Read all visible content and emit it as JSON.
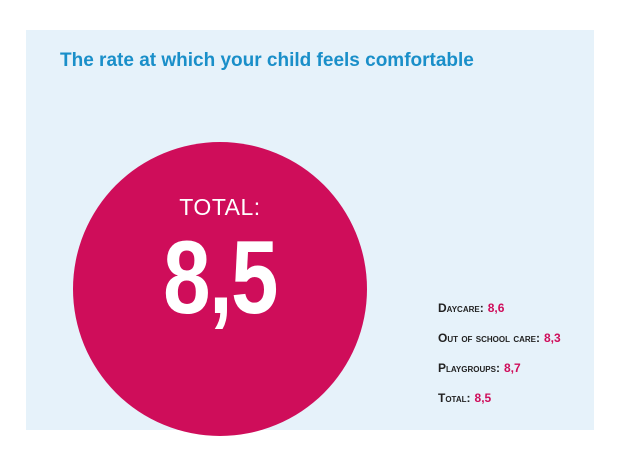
{
  "chart_data": {
    "type": "table",
    "title": "The rate at which your child feels comfortable",
    "highlight": {
      "label": "TOTAL:",
      "value_text": "8,5",
      "value": 8.5
    },
    "categories": [
      "Daycare:",
      "Out of school care:",
      "Playgroups:",
      "Total:"
    ],
    "value_texts": [
      "8,6",
      "8,3",
      "8,7",
      "8,5"
    ],
    "values": [
      8.6,
      8.3,
      8.7,
      8.5
    ],
    "legend_placement": "bottom-right"
  },
  "colors": {
    "title": "#1a8fc9",
    "circle": "#cf0d5a",
    "background": "#e6f2fa",
    "value_text": "#cf0d5a",
    "label_text": "#222222"
  }
}
